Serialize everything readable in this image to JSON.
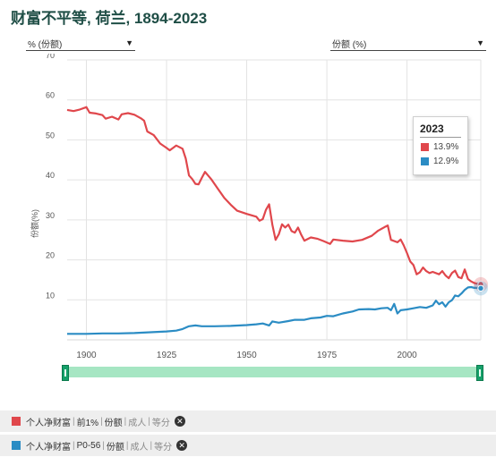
{
  "title": "财富不平等, 荷兰, 1894-2023",
  "dropdowns": {
    "left": {
      "value": "% (份额)"
    },
    "right": {
      "value": "份额 (%)"
    }
  },
  "legend": {
    "year": "2023",
    "items": [
      {
        "label": "13.9%",
        "color": "#e0474c"
      },
      {
        "label": "12.9%",
        "color": "#2b8cc4"
      }
    ]
  },
  "series_bars": [
    {
      "color": "#e0474c",
      "parts": [
        "个人净财富",
        "前1%",
        "份额",
        "成人",
        "等分"
      ]
    },
    {
      "color": "#2b8cc4",
      "parts": [
        "个人净财富",
        "P0-56",
        "份额",
        "成人",
        "等分"
      ]
    }
  ],
  "chart_data": {
    "type": "line",
    "xlim": [
      1894,
      2023
    ],
    "ylim": [
      0,
      70
    ],
    "xticks": [
      1900,
      1925,
      1950,
      1975,
      2000
    ],
    "yticks": [
      10,
      20,
      30,
      40,
      50,
      60,
      70
    ],
    "ylabel": "份额(%)",
    "grid": true,
    "series": [
      {
        "color": "#e0474c",
        "points": [
          [
            1894,
            57.5
          ],
          [
            1896,
            57.2
          ],
          [
            1898,
            57.6
          ],
          [
            1900,
            58.2
          ],
          [
            1901,
            56.8
          ],
          [
            1903,
            56.6
          ],
          [
            1905,
            56.2
          ],
          [
            1906,
            55.3
          ],
          [
            1908,
            55.8
          ],
          [
            1910,
            55.1
          ],
          [
            1911,
            56.4
          ],
          [
            1913,
            56.7
          ],
          [
            1915,
            56.3
          ],
          [
            1917,
            55.4
          ],
          [
            1918,
            54.8
          ],
          [
            1919,
            52.1
          ],
          [
            1921,
            51.2
          ],
          [
            1923,
            49.1
          ],
          [
            1925,
            48.0
          ],
          [
            1926,
            47.4
          ],
          [
            1928,
            48.6
          ],
          [
            1930,
            47.8
          ],
          [
            1931,
            45.3
          ],
          [
            1932,
            41.1
          ],
          [
            1933,
            40.2
          ],
          [
            1934,
            39.0
          ],
          [
            1935,
            38.9
          ],
          [
            1936,
            40.5
          ],
          [
            1937,
            42.0
          ],
          [
            1939,
            40.1
          ],
          [
            1941,
            37.8
          ],
          [
            1943,
            35.5
          ],
          [
            1945,
            33.8
          ],
          [
            1947,
            32.3
          ],
          [
            1950,
            31.5
          ],
          [
            1953,
            30.8
          ],
          [
            1954,
            29.8
          ],
          [
            1955,
            30.2
          ],
          [
            1956,
            32.5
          ],
          [
            1957,
            33.9
          ],
          [
            1958,
            28.8
          ],
          [
            1959,
            25.0
          ],
          [
            1960,
            26.4
          ],
          [
            1961,
            28.9
          ],
          [
            1962,
            28.1
          ],
          [
            1963,
            28.8
          ],
          [
            1964,
            27.2
          ],
          [
            1965,
            26.8
          ],
          [
            1966,
            28.1
          ],
          [
            1967,
            26.3
          ],
          [
            1968,
            24.8
          ],
          [
            1970,
            25.6
          ],
          [
            1972,
            25.3
          ],
          [
            1974,
            24.7
          ],
          [
            1976,
            24.0
          ],
          [
            1977,
            25.1
          ],
          [
            1980,
            24.8
          ],
          [
            1983,
            24.6
          ],
          [
            1986,
            25.0
          ],
          [
            1989,
            26.0
          ],
          [
            1991,
            27.3
          ],
          [
            1993,
            28.2
          ],
          [
            1994,
            28.6
          ],
          [
            1995,
            25.0
          ],
          [
            1997,
            24.4
          ],
          [
            1998,
            25.1
          ],
          [
            1999,
            23.6
          ],
          [
            2000,
            21.7
          ],
          [
            2001,
            19.6
          ],
          [
            2002,
            18.7
          ],
          [
            2003,
            16.4
          ],
          [
            2004,
            16.9
          ],
          [
            2005,
            18.1
          ],
          [
            2006,
            17.2
          ],
          [
            2007,
            16.7
          ],
          [
            2008,
            17.0
          ],
          [
            2010,
            16.4
          ],
          [
            2011,
            17.2
          ],
          [
            2012,
            16.1
          ],
          [
            2013,
            15.4
          ],
          [
            2014,
            16.7
          ],
          [
            2015,
            17.3
          ],
          [
            2016,
            15.7
          ],
          [
            2017,
            15.4
          ],
          [
            2018,
            17.6
          ],
          [
            2019,
            15.2
          ],
          [
            2020,
            14.6
          ],
          [
            2021,
            14.2
          ],
          [
            2022,
            14.0
          ],
          [
            2023,
            13.9
          ]
        ]
      },
      {
        "color": "#2b8cc4",
        "points": [
          [
            1894,
            1.5
          ],
          [
            1900,
            1.5
          ],
          [
            1905,
            1.6
          ],
          [
            1910,
            1.6
          ],
          [
            1915,
            1.7
          ],
          [
            1920,
            1.9
          ],
          [
            1925,
            2.1
          ],
          [
            1928,
            2.3
          ],
          [
            1930,
            2.7
          ],
          [
            1932,
            3.4
          ],
          [
            1934,
            3.6
          ],
          [
            1936,
            3.4
          ],
          [
            1940,
            3.4
          ],
          [
            1945,
            3.5
          ],
          [
            1950,
            3.7
          ],
          [
            1953,
            3.9
          ],
          [
            1955,
            4.1
          ],
          [
            1957,
            3.6
          ],
          [
            1958,
            4.6
          ],
          [
            1960,
            4.3
          ],
          [
            1963,
            4.7
          ],
          [
            1965,
            5.0
          ],
          [
            1968,
            5.0
          ],
          [
            1970,
            5.4
          ],
          [
            1973,
            5.6
          ],
          [
            1975,
            6.0
          ],
          [
            1977,
            5.9
          ],
          [
            1980,
            6.6
          ],
          [
            1983,
            7.1
          ],
          [
            1985,
            7.6
          ],
          [
            1988,
            7.7
          ],
          [
            1990,
            7.6
          ],
          [
            1992,
            7.9
          ],
          [
            1994,
            8.0
          ],
          [
            1995,
            7.4
          ],
          [
            1996,
            9.0
          ],
          [
            1997,
            6.6
          ],
          [
            1998,
            7.4
          ],
          [
            2000,
            7.6
          ],
          [
            2002,
            7.9
          ],
          [
            2004,
            8.2
          ],
          [
            2006,
            8.0
          ],
          [
            2008,
            8.6
          ],
          [
            2009,
            9.8
          ],
          [
            2010,
            8.9
          ],
          [
            2011,
            9.4
          ],
          [
            2012,
            8.3
          ],
          [
            2013,
            9.4
          ],
          [
            2014,
            9.9
          ],
          [
            2015,
            11.1
          ],
          [
            2016,
            10.9
          ],
          [
            2017,
            11.6
          ],
          [
            2018,
            12.5
          ],
          [
            2019,
            13.1
          ],
          [
            2020,
            13.2
          ],
          [
            2021,
            13.0
          ],
          [
            2022,
            13.0
          ],
          [
            2023,
            12.9
          ]
        ]
      }
    ]
  }
}
